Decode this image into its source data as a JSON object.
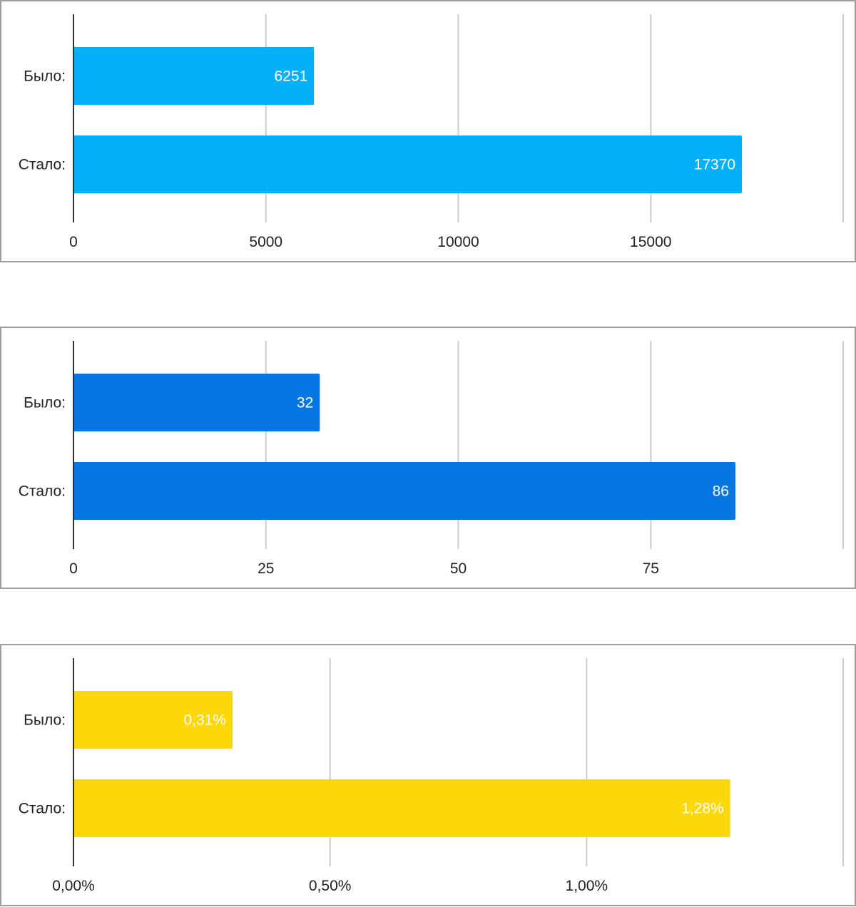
{
  "chart_data": [
    {
      "type": "bar",
      "orientation": "horizontal",
      "categories": [
        "Было:",
        "Стало:"
      ],
      "values": [
        6251,
        17370
      ],
      "value_labels": [
        "6251",
        "17370"
      ],
      "color": "#03b0f9",
      "xlim": [
        0,
        20000
      ],
      "xticks": [
        0,
        5000,
        10000,
        15000
      ],
      "xtick_labels": [
        "0",
        "5000",
        "10000",
        "15000"
      ],
      "grid": true
    },
    {
      "type": "bar",
      "orientation": "horizontal",
      "categories": [
        "Было:",
        "Стало:"
      ],
      "values": [
        32,
        86
      ],
      "value_labels": [
        "32",
        "86"
      ],
      "color": "#0576e2",
      "xlim": [
        0,
        100
      ],
      "xticks": [
        0,
        25,
        50,
        75
      ],
      "xtick_labels": [
        "0",
        "25",
        "50",
        "75"
      ],
      "grid": true
    },
    {
      "type": "bar",
      "orientation": "horizontal",
      "categories": [
        "Было:",
        "Стало:"
      ],
      "values": [
        0.31,
        1.28
      ],
      "value_labels": [
        "0,31%",
        "1,28%"
      ],
      "color": "#fcd80a",
      "xlim": [
        0,
        1.5
      ],
      "xticks": [
        0,
        0.5,
        1.0
      ],
      "xtick_labels": [
        "0,00%",
        "0,50%",
        "1,00%"
      ],
      "grid": true
    }
  ]
}
